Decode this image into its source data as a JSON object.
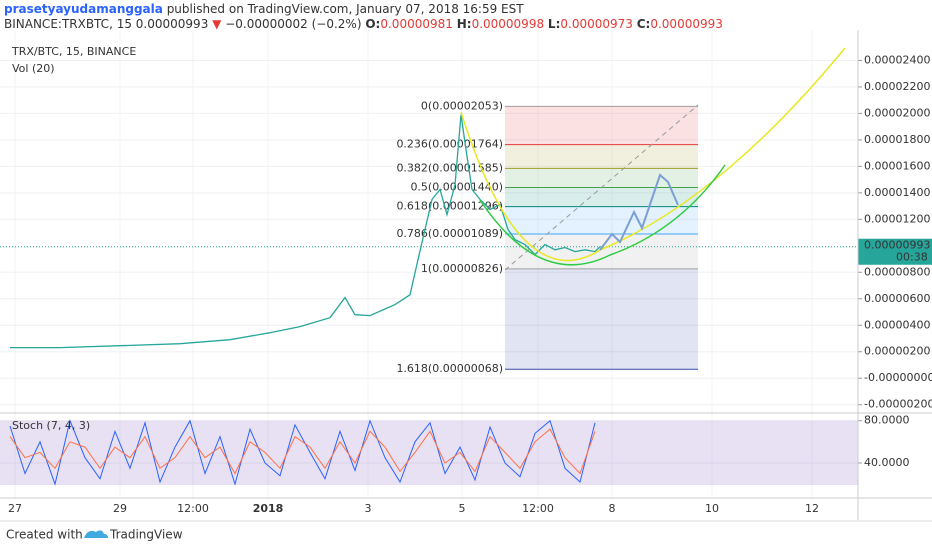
{
  "header": {
    "author": "prasetyayudamanggala",
    "published": "published on TradingView.com, January 07, 2018 16:59 EST",
    "symbol": "BINANCE:TRXBTC, 15",
    "last": "0.00000993",
    "change": "−0.00000002 (−0.2%)",
    "ohlc": [
      {
        "label": "O:",
        "value": "0.00000981"
      },
      {
        "label": "H:",
        "value": "0.00000998"
      },
      {
        "label": "L:",
        "value": "0.00000973"
      },
      {
        "label": "C:",
        "value": "0.00000993"
      }
    ]
  },
  "chart_data": [
    {
      "type": "line",
      "volume_label": "Vol (20)",
      "x": [
        2,
        12,
        24,
        36,
        46,
        54,
        60,
        66,
        69,
        71,
        74,
        79,
        82,
        83.6,
        85,
        86.4,
        88,
        89.4,
        91,
        92.2,
        93.2,
        94.4,
        96,
        98,
        100,
        101.6,
        103,
        105,
        107,
        109,
        111,
        113,
        115,
        117,
        119,
        120
      ],
      "series": [
        {
          "name": "TRX/BTC, 15, BINANCE",
          "color": "#26a69a",
          "values": [
            2.31e-06,
            2.31e-06,
            2.46e-06,
            2.61e-06,
            2.91e-06,
            3.44e-06,
            3.9e-06,
            4.57e-06,
            6.09e-06,
            4.8e-06,
            4.73e-06,
            5.56e-06,
            6.3e-06,
            8.96e-06,
            1.123e-05,
            1.35e-05,
            1.425e-05,
            1.236e-05,
            1.46e-05,
            1.99e-05,
            1.727e-05,
            1.425e-05,
            1.35e-05,
            1.274e-05,
            1.312e-05,
            1.123e-05,
            1.047e-05,
            1.01e-05,
            9.34e-06,
            1.01e-05,
            9.7e-06,
            9.87e-06,
            9.56e-06,
            9.7e-06,
            9.56e-06,
            9.93e-06
          ]
        }
      ],
      "xlim": [
        0,
        171.6
      ],
      "xticks": [
        {
          "value": 3,
          "label": "27"
        },
        {
          "value": 24,
          "label": "29"
        },
        {
          "value": 38.6,
          "label": "12:00"
        },
        {
          "value": 53.6,
          "label": "2018"
        },
        {
          "value": 73.6,
          "label": "3"
        },
        {
          "value": 92.4,
          "label": "5"
        },
        {
          "value": 107.6,
          "label": "12:00"
        },
        {
          "value": 122.4,
          "label": "8"
        },
        {
          "value": 142.4,
          "label": "10"
        },
        {
          "value": 162.4,
          "label": "12"
        }
      ],
      "ylim": [
        -2.4e-06,
        2.63e-05
      ],
      "yticks": [
        {
          "value": 2.4e-05,
          "label": "0.00002400"
        },
        {
          "value": 2.2e-05,
          "label": "0.00002200"
        },
        {
          "value": 2e-05,
          "label": "0.00002000"
        },
        {
          "value": 1.8e-05,
          "label": "0.00001800"
        },
        {
          "value": 1.6e-05,
          "label": "0.00001600"
        },
        {
          "value": 1.4e-05,
          "label": "0.00001400"
        },
        {
          "value": 1.2e-05,
          "label": "0.00001200"
        },
        {
          "value": 8e-06,
          "label": "0.00000800"
        },
        {
          "value": 6e-06,
          "label": "0.00000600"
        },
        {
          "value": 4e-06,
          "label": "0.00000400"
        },
        {
          "value": 2e-06,
          "label": "0.00000200"
        },
        {
          "value": 0,
          "label": "-0.00000000"
        },
        {
          "value": -2e-06,
          "label": "-0.00000200"
        }
      ],
      "last_price": {
        "value": 9.93e-06,
        "label": "0.00000993",
        "countdown": "00:38"
      },
      "fib_levels": [
        {
          "label": "0(0.00002053)",
          "value": 2.053e-05,
          "color": "#9e9e9e"
        },
        {
          "label": "0.236(0.00001764)",
          "value": 1.764e-05,
          "color": "#e53935"
        },
        {
          "label": "0.382(0.00001585)",
          "value": 1.585e-05,
          "color": "#9e9d24"
        },
        {
          "label": "0.5(0.00001440)",
          "value": 1.44e-05,
          "color": "#43a047"
        },
        {
          "label": "0.618(0.00001296)",
          "value": 1.296e-05,
          "color": "#00897b"
        },
        {
          "label": "0.786(0.00001089)",
          "value": 1.089e-05,
          "color": "#42a5f5"
        },
        {
          "label": "1(0.00000826)",
          "value": 8.26e-06,
          "color": "#9e9e9e"
        },
        {
          "label": "1.618(0.00000068)",
          "value": 6.8e-07,
          "color": "#3949ab"
        }
      ]
    },
    {
      "type": "line",
      "title": "Stoch (7, 4, 3)",
      "x": [
        2,
        5,
        8,
        11,
        14,
        17,
        20,
        23,
        26,
        29,
        32,
        35,
        38,
        41,
        44,
        47,
        50,
        53,
        56,
        59,
        62,
        65,
        68,
        71,
        74,
        77,
        80,
        83,
        86,
        89,
        92,
        95,
        98,
        101,
        104,
        107,
        110,
        113,
        116,
        119
      ],
      "series": [
        {
          "color": "#2962ff",
          "values": [
            75,
            30,
            60,
            20,
            80,
            45,
            25,
            70,
            35,
            78,
            22,
            55,
            80,
            30,
            65,
            20,
            72,
            40,
            28,
            76,
            50,
            25,
            70,
            33,
            80,
            45,
            22,
            60,
            78,
            30,
            55,
            24,
            74,
            40,
            27,
            68,
            80,
            35,
            22,
            78
          ]
        },
        {
          "color": "#ff7043",
          "values": [
            65,
            45,
            50,
            35,
            60,
            55,
            35,
            55,
            45,
            65,
            35,
            45,
            65,
            45,
            55,
            30,
            60,
            50,
            35,
            65,
            55,
            35,
            60,
            40,
            70,
            55,
            32,
            50,
            70,
            40,
            50,
            32,
            65,
            50,
            35,
            60,
            72,
            45,
            30,
            70
          ]
        }
      ],
      "ylim": [
        9.7,
        85.4
      ],
      "yticks": [
        {
          "value": 80,
          "label": "80.0000"
        },
        {
          "value": 40,
          "label": "40.0000"
        }
      ]
    }
  ],
  "footer": {
    "created": "Created with",
    "brand": "TradingView"
  }
}
